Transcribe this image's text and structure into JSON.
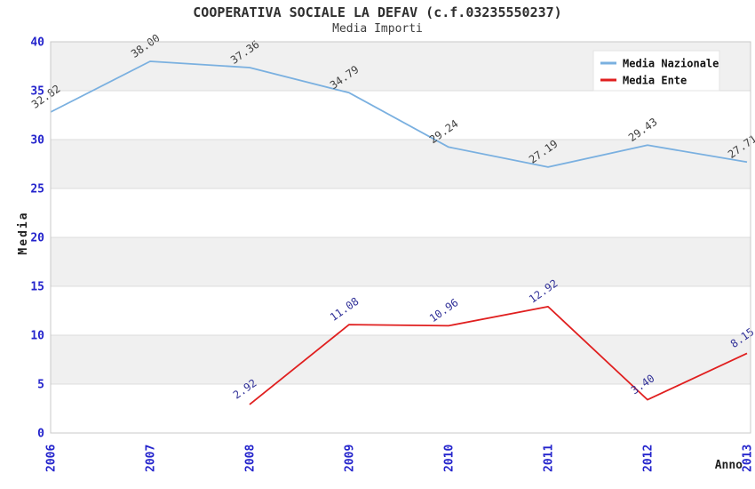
{
  "header": {
    "title": "COOPERATIVA SOCIALE LA DEFAV (c.f.03235550237)",
    "subtitle": "Media Importi"
  },
  "chart_data": {
    "type": "line",
    "x_categories": [
      "2006",
      "2007",
      "2008",
      "2009",
      "2010",
      "2011",
      "2012",
      "2013"
    ],
    "series": [
      {
        "name": "Media Nazionale",
        "color": "#7ab0e0",
        "label_color": "#3f3f3f",
        "values": [
          32.82,
          38.0,
          37.36,
          34.79,
          29.24,
          27.19,
          29.43,
          27.71
        ]
      },
      {
        "name": "Media Ente",
        "color": "#e01f1f",
        "label_color": "#333399",
        "values": [
          null,
          null,
          2.92,
          11.08,
          10.96,
          12.92,
          3.4,
          8.15
        ]
      }
    ],
    "xlabel": "Anno",
    "ylabel": "Media",
    "ylim": [
      0,
      40
    ],
    "ytick_step": 5,
    "yticks": [
      "0",
      "5",
      "10",
      "15",
      "20",
      "25",
      "30",
      "35",
      "40"
    ],
    "legend": {
      "position": "top-right",
      "items": [
        "Media Nazionale",
        "Media Ente"
      ]
    },
    "grid": "horizontal-bands",
    "colors": {
      "axis_tick_label": "#2424cc",
      "band_shaded": "#f0f0f0",
      "band_plain": "#ffffff",
      "gridline": "#dcdcdc",
      "plot_border": "#c8c8c8",
      "legend_border": "#e3e3e3",
      "legend_bg": "#ffffff",
      "axis_title": "#1f1f1f"
    }
  }
}
